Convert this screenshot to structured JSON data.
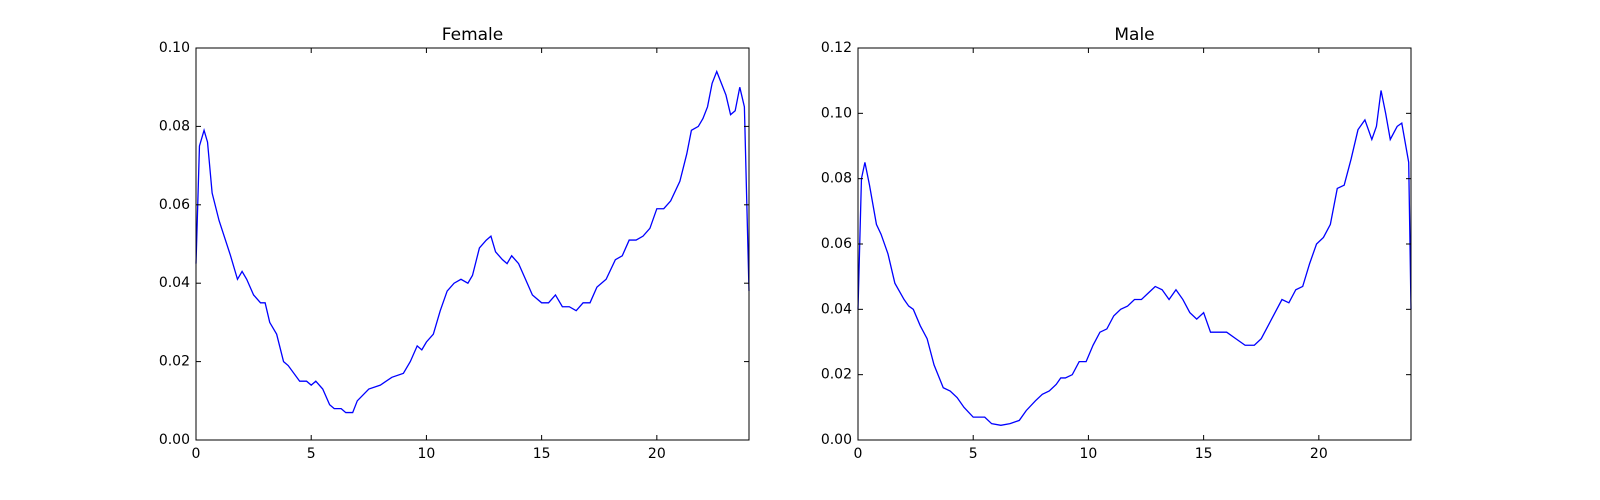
{
  "chart_data": [
    {
      "type": "line",
      "title": "Female",
      "x": [
        0,
        0.15,
        0.35,
        0.5,
        0.7,
        1.0,
        1.5,
        1.8,
        2.0,
        2.2,
        2.5,
        2.8,
        3.0,
        3.2,
        3.5,
        3.8,
        4.0,
        4.5,
        4.8,
        5.0,
        5.2,
        5.5,
        5.8,
        6.0,
        6.3,
        6.5,
        6.8,
        7.0,
        7.5,
        8.0,
        8.5,
        9.0,
        9.3,
        9.6,
        9.8,
        10.0,
        10.3,
        10.6,
        10.9,
        11.2,
        11.5,
        11.8,
        12.0,
        12.3,
        12.6,
        12.8,
        13.0,
        13.3,
        13.5,
        13.7,
        14.0,
        14.3,
        14.6,
        15.0,
        15.3,
        15.6,
        15.9,
        16.2,
        16.5,
        16.8,
        17.1,
        17.4,
        17.8,
        18.2,
        18.5,
        18.8,
        19.1,
        19.4,
        19.7,
        20.0,
        20.3,
        20.6,
        21.0,
        21.3,
        21.5,
        21.8,
        22.0,
        22.2,
        22.4,
        22.6,
        22.8,
        23.0,
        23.2,
        23.4,
        23.6,
        23.8,
        24.0
      ],
      "series": [
        {
          "color": "#0000ff",
          "values": [
            0.045,
            0.075,
            0.079,
            0.076,
            0.063,
            0.056,
            0.047,
            0.041,
            0.043,
            0.041,
            0.037,
            0.035,
            0.035,
            0.03,
            0.027,
            0.02,
            0.019,
            0.015,
            0.015,
            0.014,
            0.015,
            0.013,
            0.009,
            0.008,
            0.008,
            0.007,
            0.007,
            0.01,
            0.013,
            0.014,
            0.016,
            0.017,
            0.02,
            0.024,
            0.023,
            0.025,
            0.027,
            0.033,
            0.038,
            0.04,
            0.041,
            0.04,
            0.042,
            0.049,
            0.051,
            0.052,
            0.048,
            0.046,
            0.045,
            0.047,
            0.045,
            0.041,
            0.037,
            0.035,
            0.035,
            0.037,
            0.034,
            0.034,
            0.033,
            0.035,
            0.035,
            0.039,
            0.041,
            0.046,
            0.047,
            0.051,
            0.051,
            0.052,
            0.054,
            0.059,
            0.059,
            0.061,
            0.066,
            0.073,
            0.079,
            0.08,
            0.082,
            0.085,
            0.091,
            0.094,
            0.091,
            0.088,
            0.083,
            0.084,
            0.09,
            0.085,
            0.038
          ]
        }
      ],
      "xlim": [
        0,
        24
      ],
      "xticks": [
        0,
        5,
        10,
        15,
        20
      ],
      "ylim": [
        0,
        0.1
      ],
      "yticks": [
        {
          "value": 0,
          "label": "0.00"
        },
        0.02,
        0.04,
        0.06,
        0.08,
        {
          "value": 0.1,
          "label": "0.10"
        }
      ]
    },
    {
      "type": "line",
      "title": "Male",
      "x": [
        0,
        0.15,
        0.3,
        0.5,
        0.8,
        1.0,
        1.3,
        1.6,
        2.0,
        2.2,
        2.4,
        2.7,
        3.0,
        3.3,
        3.7,
        4.0,
        4.3,
        4.6,
        5.0,
        5.3,
        5.5,
        5.8,
        6.2,
        6.6,
        7.0,
        7.3,
        7.7,
        8.0,
        8.3,
        8.6,
        8.8,
        9.0,
        9.3,
        9.6,
        9.9,
        10.2,
        10.5,
        10.8,
        11.1,
        11.4,
        11.7,
        12.0,
        12.3,
        12.6,
        12.9,
        13.2,
        13.5,
        13.8,
        14.1,
        14.4,
        14.7,
        15.0,
        15.3,
        15.6,
        16.0,
        16.4,
        16.8,
        17.2,
        17.5,
        17.8,
        18.1,
        18.4,
        18.7,
        19.0,
        19.3,
        19.6,
        19.9,
        20.2,
        20.5,
        20.8,
        21.1,
        21.4,
        21.7,
        22.0,
        22.3,
        22.5,
        22.7,
        22.9,
        23.1,
        23.4,
        23.6,
        23.9,
        24.0
      ],
      "series": [
        {
          "color": "#0000ff",
          "values": [
            0.04,
            0.08,
            0.085,
            0.078,
            0.066,
            0.063,
            0.057,
            0.048,
            0.043,
            0.041,
            0.04,
            0.035,
            0.031,
            0.023,
            0.016,
            0.015,
            0.013,
            0.01,
            0.007,
            0.007,
            0.007,
            0.005,
            0.0045,
            0.005,
            0.006,
            0.009,
            0.012,
            0.014,
            0.015,
            0.017,
            0.019,
            0.019,
            0.02,
            0.024,
            0.024,
            0.029,
            0.033,
            0.034,
            0.038,
            0.04,
            0.041,
            0.043,
            0.043,
            0.045,
            0.047,
            0.046,
            0.043,
            0.046,
            0.043,
            0.039,
            0.037,
            0.039,
            0.033,
            0.033,
            0.033,
            0.031,
            0.029,
            0.029,
            0.031,
            0.035,
            0.039,
            0.043,
            0.042,
            0.046,
            0.047,
            0.054,
            0.06,
            0.062,
            0.066,
            0.077,
            0.078,
            0.086,
            0.095,
            0.098,
            0.092,
            0.096,
            0.107,
            0.1,
            0.092,
            0.096,
            0.097,
            0.085,
            0.04
          ]
        }
      ],
      "xlim": [
        0,
        24
      ],
      "xticks": [
        0,
        5,
        10,
        15,
        20
      ],
      "ylim": [
        0,
        0.12
      ],
      "yticks": [
        {
          "value": 0,
          "label": "0.00"
        },
        0.02,
        0.04,
        0.06,
        0.08,
        {
          "value": 0.1,
          "label": "0.10"
        },
        0.12
      ]
    }
  ]
}
